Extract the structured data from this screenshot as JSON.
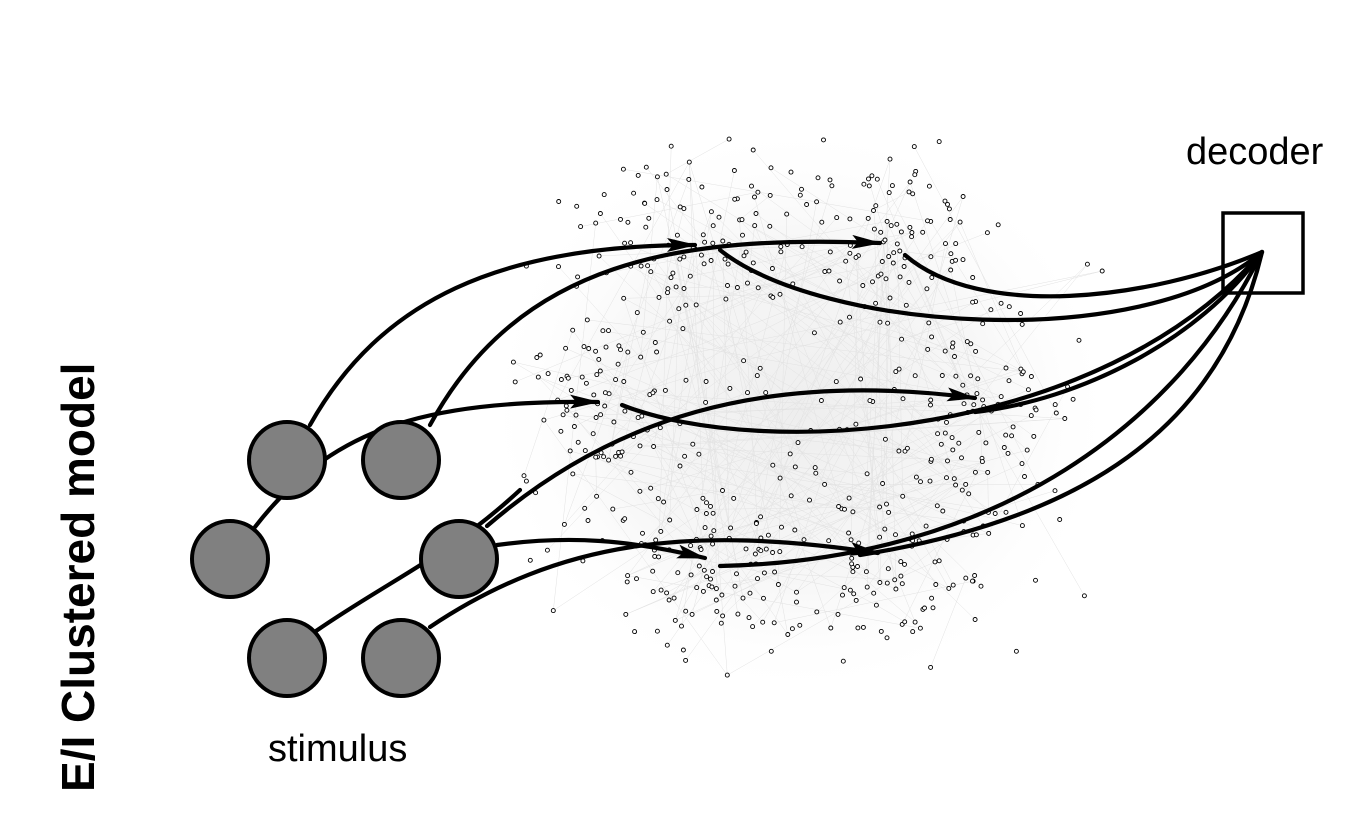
{
  "figure": {
    "title": "E/I Clustered model",
    "input_label": "stimulus",
    "output_label": "decoder"
  },
  "colors": {
    "node_fill": "#808080",
    "stroke": "#000000",
    "background": "#ffffff"
  },
  "diagram": {
    "stimulus_node_count": 6,
    "decoder_box_count": 1,
    "connection_count": 6
  }
}
